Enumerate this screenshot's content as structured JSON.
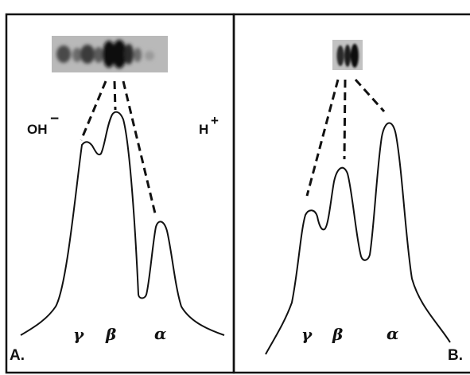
{
  "panel_a": {
    "label": "A.",
    "left_marker": "OH",
    "left_marker_sup": "−",
    "right_marker": "H",
    "right_marker_sup": "+",
    "peaks": [
      "γ",
      "β",
      "α"
    ]
  },
  "panel_b": {
    "label": "B.",
    "peaks": [
      "γ",
      "β",
      "α"
    ]
  },
  "colors": {
    "line": "#111111",
    "background": "#ffffff",
    "gel_background": "#b9b9b9",
    "band_dark": "#1a1a1a"
  }
}
